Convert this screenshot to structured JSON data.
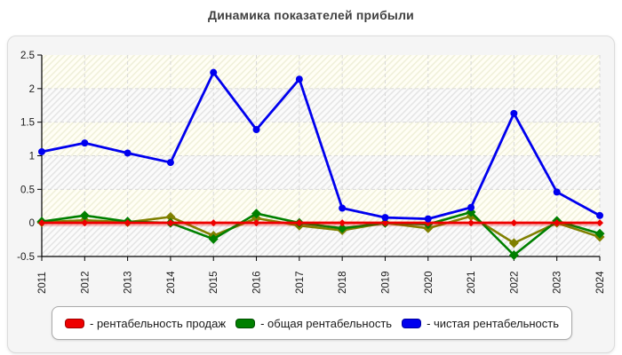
{
  "page": {
    "title": "Динамика показателей прибыли"
  },
  "chart_data": {
    "type": "line",
    "title": "Динамика показателей прибыли",
    "xlabel": "",
    "ylabel": "",
    "categories": [
      "2011",
      "2012",
      "2013",
      "2014",
      "2015",
      "2016",
      "2017",
      "2018",
      "2019",
      "2020",
      "2021",
      "2022",
      "2023",
      "2024"
    ],
    "ylim": [
      -0.5,
      2.5
    ],
    "yticks": [
      2.5,
      2,
      1.5,
      1,
      0.5,
      0,
      -0.5
    ],
    "grid": true,
    "legend_position": "bottom",
    "series": [
      {
        "name": "рентабельность продаж",
        "color": "#ee0000",
        "marker": "diamond",
        "marker_size": 4,
        "line_width": 3,
        "shadow": true,
        "values": [
          0,
          0,
          0,
          0,
          0,
          0,
          0,
          0,
          0,
          0,
          0,
          0,
          0,
          0
        ]
      },
      {
        "name": "общая рентабельность",
        "color": "#008000",
        "marker": "diamond",
        "marker_size": 5.5,
        "line_width": 2.6,
        "shadow": false,
        "values": [
          0.02,
          0.11,
          0.02,
          0.0,
          -0.24,
          0.14,
          0.0,
          -0.08,
          0.0,
          -0.02,
          0.16,
          -0.48,
          0.03,
          -0.16
        ]
      },
      {
        "name": "чистая рентабельность",
        "color": "#0000ee",
        "marker": "circle",
        "marker_size": 4,
        "line_width": 2.8,
        "shadow": false,
        "values": [
          1.06,
          1.19,
          1.04,
          0.9,
          2.24,
          1.39,
          2.14,
          0.22,
          0.08,
          0.06,
          0.23,
          1.63,
          0.46,
          0.11
        ]
      },
      {
        "name": "",
        "color": "#808000",
        "marker": "diamond",
        "marker_size": 5.5,
        "line_width": 2.6,
        "shadow": false,
        "values": [
          0.01,
          0.04,
          0.01,
          0.09,
          -0.19,
          0.07,
          -0.04,
          -0.11,
          0.0,
          -0.08,
          0.1,
          -0.3,
          0.0,
          -0.21
        ]
      }
    ],
    "draw_order": [
      3,
      1,
      0,
      2
    ]
  },
  "legend": {
    "items": [
      {
        "label": "- рентабельность продаж",
        "color": "#ee0000",
        "border": "#a00000"
      },
      {
        "label": "- общая рентабельность",
        "color": "#008000",
        "border": "#004d00"
      },
      {
        "label": "- чистая рентабельность",
        "color": "#0000ee",
        "border": "#0000a0"
      }
    ]
  },
  "colors": {
    "title": "#3f3f3f",
    "panel_bg": "#f5f5f5",
    "band_yellow_base": "#fffef5",
    "band_yellow_stripe": "#f0f0da",
    "band_gray_base": "#fbfbfb",
    "band_gray_stripe": "#e5e5e5",
    "gridline": "#d8d8d8",
    "axis": "#000000"
  }
}
